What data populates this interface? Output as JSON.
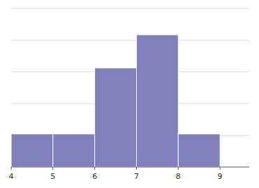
{
  "chart_data": {
    "type": "histogram",
    "bins": [
      4,
      5,
      6,
      7,
      8,
      9
    ],
    "values": [
      1,
      1,
      3,
      4,
      1
    ],
    "color": "#8080bc",
    "xlim": [
      4,
      9.7
    ],
    "xticks": [
      4,
      5,
      6,
      7,
      8,
      9
    ],
    "ylim": [
      0,
      4.8
    ],
    "yticks": [
      0,
      0.96,
      1.92,
      2.88,
      3.84,
      4.8
    ],
    "grid": true,
    "tick_labels": "x"
  }
}
